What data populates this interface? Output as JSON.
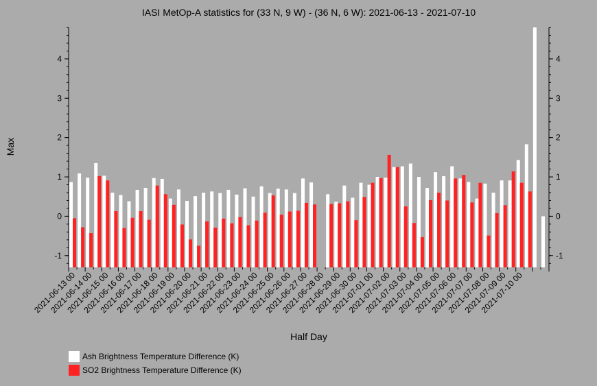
{
  "chart_data": {
    "type": "bar",
    "title": "IASI MetOp-A statistics for (33 N, 9 W) - (36 N, 6 W): 2021-06-13 - 2021-07-10",
    "xlabel": "Half Day",
    "ylabel": "Max",
    "ylim": [
      -1.3,
      4.8
    ],
    "yticks": [
      -1,
      0,
      1,
      2,
      3,
      4
    ],
    "grid": false,
    "legend_position": "bottom-left",
    "x_tick_labels": [
      "2021-06-13 00",
      "2021-06-14 00",
      "2021-06-15 00",
      "2021-06-16 00",
      "2021-06-17 00",
      "2021-06-18 00",
      "2021-06-19 00",
      "2021-06-20 00",
      "2021-06-21 00",
      "2021-06-22 00",
      "2021-06-23 00",
      "2021-06-24 00",
      "2021-06-25 00",
      "2021-06-26 00",
      "2021-06-27 00",
      "2021-06-28 00",
      "2021-06-29 00",
      "2021-06-30 00",
      "2021-07-01 00",
      "2021-07-02 00",
      "2021-07-03 00",
      "2021-07-04 00",
      "2021-07-05 00",
      "2021-07-06 00",
      "2021-07-07 00",
      "2021-07-08 00",
      "2021-07-09 00",
      "2021-07-10 00"
    ],
    "series": [
      {
        "name": "Ash Brightness Temperature Difference (K)",
        "color": "#ffffff",
        "values": [
          0.87,
          1.09,
          0.98,
          1.35,
          1.03,
          0.6,
          0.54,
          0.38,
          0.67,
          0.72,
          0.97,
          0.95,
          0.45,
          0.68,
          0.39,
          0.51,
          0.6,
          0.63,
          0.59,
          0.67,
          0.55,
          0.71,
          0.5,
          0.76,
          0.59,
          0.7,
          0.68,
          0.59,
          0.96,
          0.86,
          null,
          0.56,
          0.37,
          0.78,
          0.47,
          0.85,
          0.8,
          1.0,
          0.98,
          1.25,
          1.27,
          1.34,
          1.0,
          0.72,
          1.12,
          1.02,
          1.27,
          0.96,
          0.87,
          0.45,
          0.83,
          0.6,
          0.91,
          0.91,
          1.43,
          1.83,
          4.8,
          0.0
        ]
      },
      {
        "name": "SO2 Brightness Temperature Difference (K)",
        "color": "#ff2222",
        "values": [
          -0.05,
          -0.28,
          -0.43,
          1.02,
          0.91,
          0.13,
          -0.3,
          -0.04,
          0.13,
          -0.09,
          0.78,
          0.56,
          0.29,
          -0.21,
          -0.59,
          -0.75,
          -0.13,
          -0.29,
          -0.06,
          -0.18,
          -0.02,
          -0.23,
          -0.11,
          0.09,
          0.53,
          0.04,
          0.12,
          0.14,
          0.34,
          0.3,
          null,
          0.31,
          0.33,
          0.38,
          -0.1,
          0.49,
          0.85,
          0.97,
          1.56,
          1.25,
          0.25,
          -0.17,
          -0.53,
          0.41,
          0.6,
          0.4,
          0.96,
          1.05,
          0.35,
          0.85,
          -0.49,
          0.08,
          0.28,
          1.14,
          0.85,
          0.63,
          null,
          null
        ]
      }
    ]
  }
}
